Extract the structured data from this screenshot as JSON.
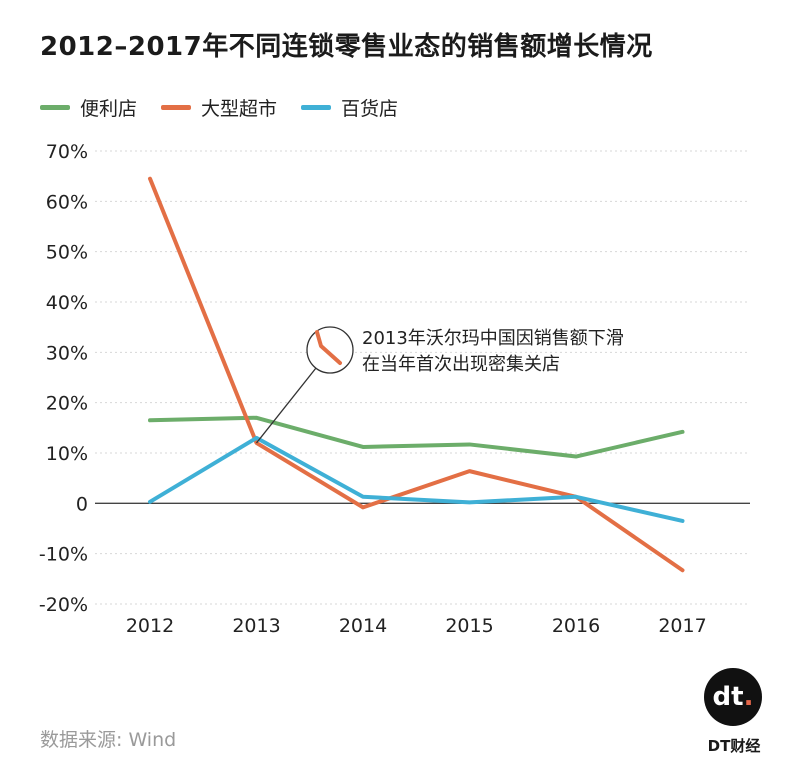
{
  "title": "2012–2017年不同连锁零售业态的销售额增长情况",
  "legend": [
    {
      "name": "便利店",
      "color": "#6cad6a"
    },
    {
      "name": "大型超市",
      "color": "#e36f45"
    },
    {
      "name": "百货店",
      "color": "#3fb0d6"
    }
  ],
  "annotation": {
    "line1": "2013年沃尔玛中国因销售额下滑",
    "line2": "在当年首次出现密集关店"
  },
  "source": "数据来源: Wind",
  "brand": {
    "logo_text": "dt",
    "logo_dot": ".",
    "name": "DT财经"
  },
  "chart_data": {
    "type": "line",
    "categories": [
      "2012",
      "2013",
      "2014",
      "2015",
      "2016",
      "2017"
    ],
    "y_ticks": [
      "70%",
      "60%",
      "50%",
      "40%",
      "30%",
      "20%",
      "10%",
      "0",
      "-10%",
      "-20%"
    ],
    "ylim": [
      -20,
      70
    ],
    "series": [
      {
        "name": "便利店",
        "color": "#6cad6a",
        "values": [
          16.5,
          17,
          11.2,
          11.7,
          9.3,
          14.2
        ]
      },
      {
        "name": "大型超市",
        "color": "#e36f45",
        "values": [
          64.5,
          12,
          -0.8,
          6.4,
          1.3,
          -13.3
        ]
      },
      {
        "name": "百货店",
        "color": "#3fb0d6",
        "values": [
          0.3,
          13,
          1.3,
          0.2,
          1.3,
          -3.5
        ]
      }
    ]
  }
}
